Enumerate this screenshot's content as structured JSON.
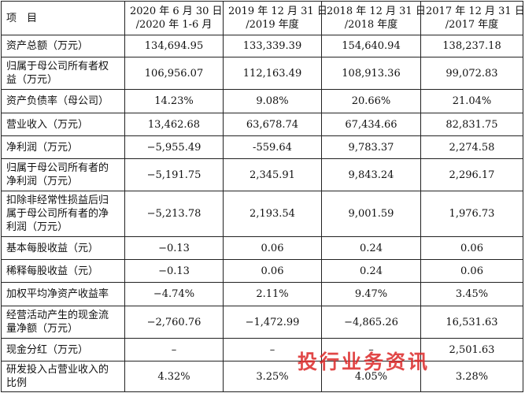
{
  "table": {
    "header": [
      [
        "项　目"
      ],
      [
        "2020 年 6 月 30 日",
        "/2020 年 1-6 月"
      ],
      [
        "2019 年 12 月 31 日",
        "/2019 年度"
      ],
      [
        "2018 年 12 月 31 日",
        "/2018 年度"
      ],
      [
        "2017 年 12 月 31 日",
        "/2017 年度"
      ]
    ],
    "rows": [
      [
        [
          "资产总额（万元）"
        ],
        [
          "134,694.95"
        ],
        [
          "133,339.39"
        ],
        [
          "154,640.94"
        ],
        [
          "138,237.18"
        ]
      ],
      [
        [
          "归属于母公司所有者权",
          "益（万元）"
        ],
        [
          "106,956.07"
        ],
        [
          "112,163.49"
        ],
        [
          "108,913.36"
        ],
        [
          "99,072.83"
        ]
      ],
      [
        [
          "资产负债率（母公司）"
        ],
        [
          "14.23%"
        ],
        [
          "9.08%"
        ],
        [
          "20.66%"
        ],
        [
          "21.04%"
        ]
      ],
      [
        [
          "营业收入（万元）"
        ],
        [
          "13,462.68"
        ],
        [
          "63,678.74"
        ],
        [
          "67,434.66"
        ],
        [
          "82,831.75"
        ]
      ],
      [
        [
          "净利润（万元）"
        ],
        [
          "−5,955.49"
        ],
        [
          "-559.64"
        ],
        [
          "9,783.37"
        ],
        [
          "2,274.58"
        ]
      ],
      [
        [
          "归属于母公司所有者的",
          "净利润（万元）"
        ],
        [
          "−5,191.75"
        ],
        [
          "2,345.91"
        ],
        [
          "9,843.24"
        ],
        [
          "2,296.17"
        ]
      ],
      [
        [
          "扣除非经常性损益后归",
          "属于母公司所有者的净",
          "利润（万元）"
        ],
        [
          "−5,213.78"
        ],
        [
          "2,193.54"
        ],
        [
          "9,001.59"
        ],
        [
          "1,976.73"
        ]
      ],
      [
        [
          "基本每股收益（元）"
        ],
        [
          "−0.13"
        ],
        [
          "0.06"
        ],
        [
          "0.24"
        ],
        [
          "0.06"
        ]
      ],
      [
        [
          "稀释每股收益（元）"
        ],
        [
          "−0.13"
        ],
        [
          "0.06"
        ],
        [
          "0.24"
        ],
        [
          "0.06"
        ]
      ],
      [
        [
          "加权平均净资产收益率"
        ],
        [
          "−4.74%"
        ],
        [
          "2.11%"
        ],
        [
          "9.47%"
        ],
        [
          "3.45%"
        ]
      ],
      [
        [
          "经营活动产生的现金流",
          "量净额（万元）"
        ],
        [
          "−2,760.76"
        ],
        [
          "−1,472.99"
        ],
        [
          "−4,865.26"
        ],
        [
          "16,531.63"
        ]
      ],
      [
        [
          "现金分红（万元）"
        ],
        [
          "–"
        ],
        [
          "–"
        ],
        [
          "–"
        ],
        [
          "2,501.63"
        ]
      ],
      [
        [
          "研发投入占营业收入的",
          "比例"
        ],
        [
          "4.32%"
        ],
        [
          "3.25%"
        ],
        [
          "4.05%"
        ],
        [
          "3.28%"
        ]
      ]
    ]
  },
  "watermark": "投行业务资讯"
}
